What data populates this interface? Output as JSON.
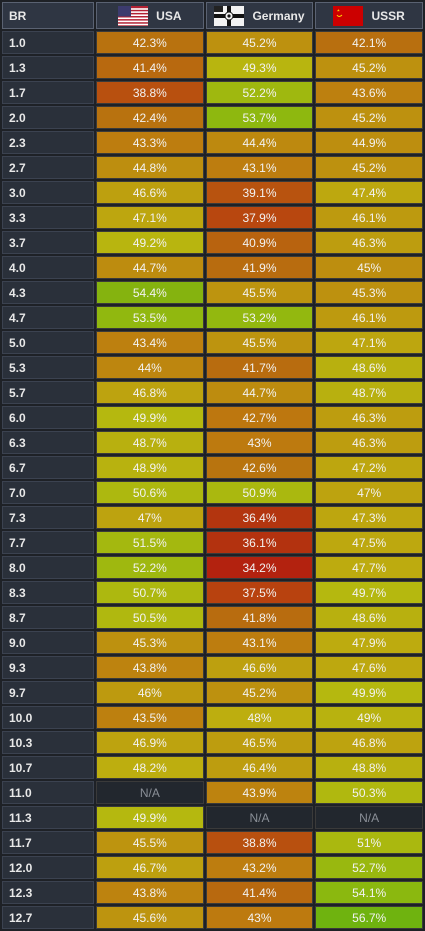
{
  "header": {
    "br": "BR",
    "nations": [
      "USA",
      "Germany",
      "USSR"
    ]
  },
  "rows": [
    {
      "br": "1.0",
      "v": [
        "42.3%",
        "45.2%",
        "42.1%"
      ]
    },
    {
      "br": "1.3",
      "v": [
        "41.4%",
        "49.3%",
        "45.2%"
      ]
    },
    {
      "br": "1.7",
      "v": [
        "38.8%",
        "52.2%",
        "43.6%"
      ]
    },
    {
      "br": "2.0",
      "v": [
        "42.4%",
        "53.7%",
        "45.2%"
      ]
    },
    {
      "br": "2.3",
      "v": [
        "43.3%",
        "44.4%",
        "44.9%"
      ]
    },
    {
      "br": "2.7",
      "v": [
        "44.8%",
        "43.1%",
        "45.2%"
      ]
    },
    {
      "br": "3.0",
      "v": [
        "46.6%",
        "39.1%",
        "47.4%"
      ]
    },
    {
      "br": "3.3",
      "v": [
        "47.1%",
        "37.9%",
        "46.1%"
      ]
    },
    {
      "br": "3.7",
      "v": [
        "49.2%",
        "40.9%",
        "46.3%"
      ]
    },
    {
      "br": "4.0",
      "v": [
        "44.7%",
        "41.9%",
        "45%"
      ]
    },
    {
      "br": "4.3",
      "v": [
        "54.4%",
        "45.5%",
        "45.3%"
      ]
    },
    {
      "br": "4.7",
      "v": [
        "53.5%",
        "53.2%",
        "46.1%"
      ]
    },
    {
      "br": "5.0",
      "v": [
        "43.4%",
        "45.5%",
        "47.1%"
      ]
    },
    {
      "br": "5.3",
      "v": [
        "44%",
        "41.7%",
        "48.6%"
      ]
    },
    {
      "br": "5.7",
      "v": [
        "46.8%",
        "44.7%",
        "48.7%"
      ]
    },
    {
      "br": "6.0",
      "v": [
        "49.9%",
        "42.7%",
        "46.3%"
      ]
    },
    {
      "br": "6.3",
      "v": [
        "48.7%",
        "43%",
        "46.3%"
      ]
    },
    {
      "br": "6.7",
      "v": [
        "48.9%",
        "42.6%",
        "47.2%"
      ]
    },
    {
      "br": "7.0",
      "v": [
        "50.6%",
        "50.9%",
        "47%"
      ]
    },
    {
      "br": "7.3",
      "v": [
        "47%",
        "36.4%",
        "47.3%"
      ]
    },
    {
      "br": "7.7",
      "v": [
        "51.5%",
        "36.1%",
        "47.5%"
      ]
    },
    {
      "br": "8.0",
      "v": [
        "52.2%",
        "34.2%",
        "47.7%"
      ]
    },
    {
      "br": "8.3",
      "v": [
        "50.7%",
        "37.5%",
        "49.7%"
      ]
    },
    {
      "br": "8.7",
      "v": [
        "50.5%",
        "41.8%",
        "48.6%"
      ]
    },
    {
      "br": "9.0",
      "v": [
        "45.3%",
        "43.1%",
        "47.9%"
      ]
    },
    {
      "br": "9.3",
      "v": [
        "43.8%",
        "46.6%",
        "47.6%"
      ]
    },
    {
      "br": "9.7",
      "v": [
        "46%",
        "45.2%",
        "49.9%"
      ]
    },
    {
      "br": "10.0",
      "v": [
        "43.5%",
        "48%",
        "49%"
      ]
    },
    {
      "br": "10.3",
      "v": [
        "46.9%",
        "46.5%",
        "46.8%"
      ]
    },
    {
      "br": "10.7",
      "v": [
        "48.2%",
        "46.4%",
        "48.8%"
      ]
    },
    {
      "br": "11.0",
      "v": [
        "N/A",
        "43.9%",
        "50.3%"
      ]
    },
    {
      "br": "11.3",
      "v": [
        "49.9%",
        "N/A",
        "N/A"
      ]
    },
    {
      "br": "11.7",
      "v": [
        "45.5%",
        "38.8%",
        "51%"
      ]
    },
    {
      "br": "12.0",
      "v": [
        "46.7%",
        "43.2%",
        "52.7%"
      ]
    },
    {
      "br": "12.3",
      "v": [
        "43.8%",
        "41.4%",
        "54.1%"
      ]
    },
    {
      "br": "12.7",
      "v": [
        "45.6%",
        "43%",
        "56.7%"
      ]
    }
  ]
}
